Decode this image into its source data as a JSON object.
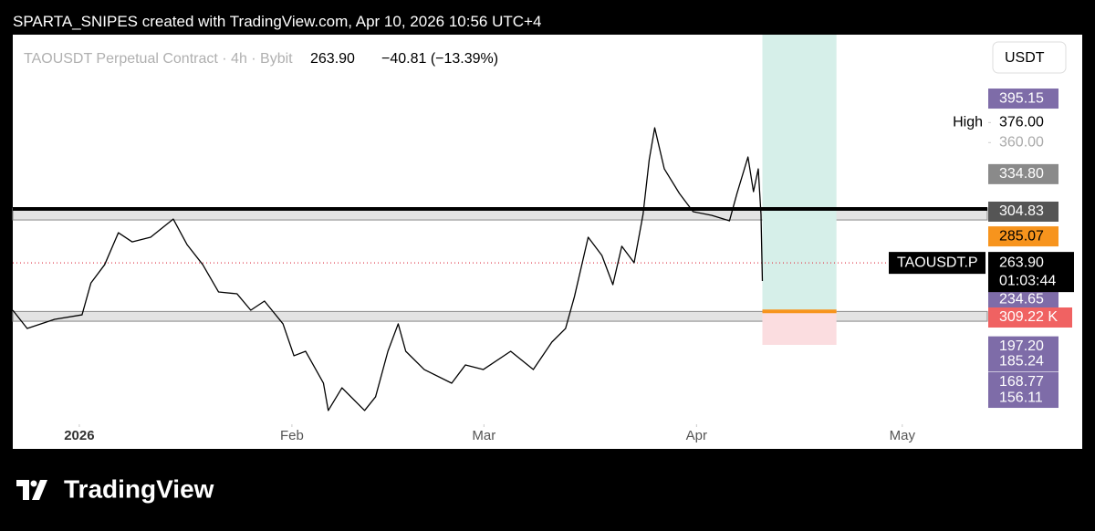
{
  "credit": "SPARTA_SNIPES created with TradingView.com, Apr 10, 2026 10:56 UTC+4",
  "brand": "TradingView",
  "chart_data": {
    "type": "line",
    "title": "TAOUSDT Perpetual Contract · 4h · Bybit",
    "last_price": {
      "value": 263.9,
      "label": "263.90"
    },
    "change": "−40.81 (−13.39%)",
    "currency": "USDT",
    "countdown": "01:03:44",
    "xlim": [
      -9.7,
      132.4
    ],
    "xticks": [
      {
        "value": 0,
        "label": "2026"
      },
      {
        "value": 31,
        "label": "Feb"
      },
      {
        "value": 59,
        "label": "Mar"
      },
      {
        "value": 90,
        "label": "Apr"
      },
      {
        "value": 120,
        "label": "May"
      }
    ],
    "ylim": [
      135,
      446.2
    ],
    "series": [
      {
        "name": "TAOUSDT.P",
        "color": "#000000",
        "x": [
          -9.7,
          -7.6,
          -3.6,
          0.4,
          1.7,
          3.7,
          5.7,
          7.7,
          10.4,
          13.7,
          15.7,
          18.0,
          20.3,
          23.0,
          25.0,
          27.0,
          29.7,
          31.3,
          33.0,
          35.6,
          36.3,
          38.3,
          41.6,
          43.2,
          45.0,
          46.5,
          47.6,
          50.3,
          54.3,
          56.3,
          58.9,
          62.9,
          66.2,
          68.9,
          70.9,
          72.2,
          74.2,
          76.2,
          77.8,
          79.1,
          80.9,
          82.2,
          83.1,
          83.9,
          85.3,
          87.5,
          89.5,
          92.2,
          94.8,
          95.9,
          97.5,
          98.3,
          99.0,
          99.4,
          99.6
        ],
        "values": [
          226.1,
          211.5,
          218.8,
          222.4,
          247.9,
          262.5,
          288.0,
          280.7,
          284.4,
          298.9,
          278.6,
          262.5,
          240.7,
          239.2,
          226.1,
          233.4,
          215.2,
          189.7,
          193.3,
          167.8,
          146.0,
          164.1,
          146.0,
          156.9,
          193.3,
          215.2,
          193.3,
          178.7,
          167.8,
          182.4,
          178.7,
          193.3,
          178.7,
          200.6,
          211.5,
          237.0,
          284.4,
          269.8,
          246.5,
          277.2,
          264.0,
          302.6,
          346.3,
          371.8,
          339.0,
          319.4,
          304.8,
          301.9,
          297.5,
          319.4,
          348.5,
          320.8,
          339.0,
          302.6,
          249.4
        ]
      }
    ],
    "levels": [
      {
        "value": 307.0,
        "color": "#000000"
      }
    ],
    "zones": [
      {
        "top": 307.7,
        "bottom": 298.2,
        "color": "#e3e3e3"
      },
      {
        "top": 225.1,
        "bottom": 217.3,
        "color": "#e3e3e3"
      }
    ],
    "position": {
      "x": [
        99.6,
        110.4
      ],
      "target": 446.2,
      "entry": 225.2,
      "stop": 198.4,
      "target_color": "#d6efe9",
      "entry_color": "#f7941d",
      "stop_color": "#fbdde0"
    },
    "price_labels": [
      {
        "value": 395.15,
        "label": "395.15",
        "bg": "#7e6ca8",
        "fg": "#ffffff"
      },
      {
        "value": 376,
        "label": "376.00",
        "bg": null,
        "fg": "#000000",
        "tag": "High"
      },
      {
        "value": 360,
        "label": "360.00",
        "bg": null,
        "fg": "#aaaaaa"
      },
      {
        "value": 334.8,
        "label": "334.80",
        "bg": "#8a8a8a",
        "fg": "#ffffff"
      },
      {
        "value": 304.83,
        "label": "304.83",
        "bg": "#555555",
        "fg": "#ffffff"
      },
      {
        "value": 285.07,
        "label": "285.07",
        "bg": "#f7941d",
        "fg": "#000000"
      },
      {
        "value": 234.65,
        "label": "234.65",
        "bg": "#7e6ca8",
        "fg": "#ffffff"
      },
      {
        "value": 197.2,
        "label": "197.20",
        "bg": "#7e6ca8",
        "fg": "#ffffff"
      },
      {
        "value": 185.24,
        "label": "185.24",
        "bg": "#7e6ca8",
        "fg": "#ffffff"
      },
      {
        "value": 168.77,
        "label": "168.77",
        "bg": "#7e6ca8",
        "fg": "#ffffff"
      },
      {
        "value": 156.11,
        "label": "156.11",
        "bg": "#7e6ca8",
        "fg": "#ffffff"
      }
    ],
    "volume_label": {
      "value": 309.22,
      "label": "309.22 K",
      "bg": "#f06262"
    }
  }
}
